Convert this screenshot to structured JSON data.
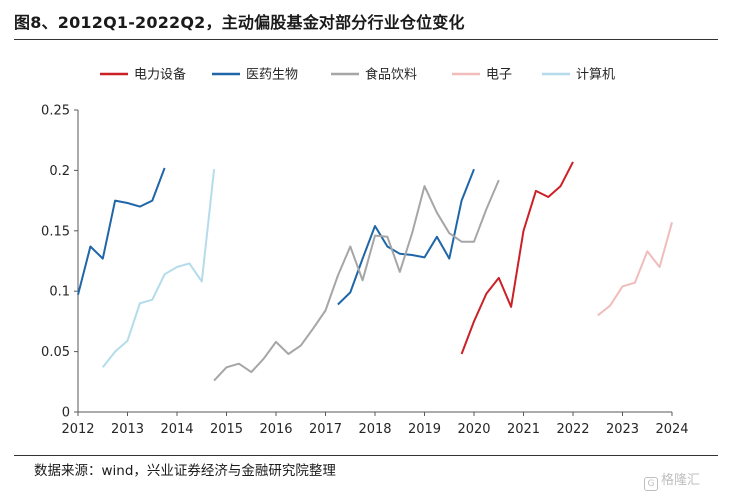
{
  "page": {
    "title": "图8、2012Q1-2022Q2，主动偏股基金对部分行业仓位变化",
    "source": "数据来源：wind，兴业证券经济与金融研究院整理",
    "watermark": "格隆汇"
  },
  "chart_data": {
    "type": "line",
    "title": "图8、2012Q1-2022Q2，主动偏股基金对部分行业仓位变化",
    "xlabel": "",
    "ylabel": "",
    "xlim": [
      2012,
      2024
    ],
    "ylim": [
      0,
      0.25
    ],
    "x_ticks": [
      2012,
      2013,
      2014,
      2015,
      2016,
      2017,
      2018,
      2019,
      2020,
      2021,
      2022,
      2023,
      2024
    ],
    "y_ticks": [
      0,
      0.05,
      0.1,
      0.15,
      0.2,
      0.25
    ],
    "y_tick_labels": [
      "0",
      "0.05",
      "0.1",
      "0.15",
      "0.2",
      "0.25"
    ],
    "grid": false,
    "legend_position": "top",
    "series": [
      {
        "name": "电力设备",
        "color": "#cc2027",
        "points": [
          [
            2019.75,
            0.048
          ],
          [
            2020.0,
            0.075
          ],
          [
            2020.25,
            0.098
          ],
          [
            2020.5,
            0.111
          ],
          [
            2020.75,
            0.087
          ],
          [
            2021.0,
            0.15
          ],
          [
            2021.25,
            0.183
          ],
          [
            2021.5,
            0.178
          ],
          [
            2021.75,
            0.187
          ],
          [
            2022.0,
            0.207
          ]
        ]
      },
      {
        "name": "医药生物",
        "color": "#1f66a8",
        "points": [
          [
            2012.0,
            0.097
          ],
          [
            2012.25,
            0.137
          ],
          [
            2012.5,
            0.127
          ],
          [
            2012.75,
            0.175
          ],
          [
            2013.0,
            0.173
          ],
          [
            2013.25,
            0.17
          ],
          [
            2013.5,
            0.175
          ],
          [
            2013.75,
            0.202
          ],
          [
            2017.25,
            0.089
          ],
          [
            2017.5,
            0.099
          ],
          [
            2017.75,
            0.127
          ],
          [
            2018.0,
            0.154
          ],
          [
            2018.25,
            0.137
          ],
          [
            2018.5,
            0.131
          ],
          [
            2018.75,
            0.13
          ],
          [
            2019.0,
            0.128
          ],
          [
            2019.25,
            0.145
          ],
          [
            2019.5,
            0.127
          ],
          [
            2019.75,
            0.175
          ],
          [
            2020.0,
            0.201
          ]
        ]
      },
      {
        "name": "食品饮料",
        "color": "#a6a6a6",
        "points": [
          [
            2014.75,
            0.026
          ],
          [
            2015.0,
            0.037
          ],
          [
            2015.25,
            0.04
          ],
          [
            2015.5,
            0.033
          ],
          [
            2015.75,
            0.044
          ],
          [
            2016.0,
            0.058
          ],
          [
            2016.25,
            0.048
          ],
          [
            2016.5,
            0.055
          ],
          [
            2016.75,
            0.069
          ],
          [
            2017.0,
            0.084
          ],
          [
            2017.25,
            0.113
          ],
          [
            2017.5,
            0.137
          ],
          [
            2017.75,
            0.109
          ],
          [
            2018.0,
            0.146
          ],
          [
            2018.25,
            0.145
          ],
          [
            2018.5,
            0.116
          ],
          [
            2018.75,
            0.148
          ],
          [
            2019.0,
            0.187
          ],
          [
            2019.25,
            0.165
          ],
          [
            2019.5,
            0.148
          ],
          [
            2019.75,
            0.141
          ],
          [
            2020.0,
            0.141
          ],
          [
            2020.25,
            0.168
          ],
          [
            2020.5,
            0.192
          ]
        ]
      },
      {
        "name": "电子",
        "color": "#f0bcbc",
        "points": [
          [
            2022.5,
            0.08
          ],
          [
            2022.75,
            0.088
          ],
          [
            2023.0,
            0.104
          ],
          [
            2023.25,
            0.107
          ],
          [
            2023.5,
            0.133
          ],
          [
            2023.75,
            0.12
          ],
          [
            2024.0,
            0.157
          ]
        ]
      },
      {
        "name": "计算机",
        "color": "#b5dcea",
        "points": [
          [
            2012.5,
            0.037
          ],
          [
            2012.75,
            0.05
          ],
          [
            2013.0,
            0.059
          ],
          [
            2013.25,
            0.09
          ],
          [
            2013.5,
            0.093
          ],
          [
            2013.75,
            0.114
          ],
          [
            2014.0,
            0.12
          ],
          [
            2014.25,
            0.123
          ],
          [
            2014.5,
            0.108
          ],
          [
            2014.75,
            0.201
          ]
        ]
      }
    ]
  }
}
